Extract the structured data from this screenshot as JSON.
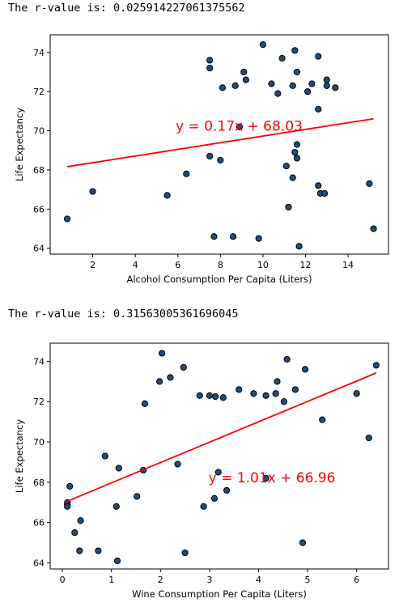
{
  "outputs": [
    {
      "rvalue_text": "The r-value is: 0.025914227061375562"
    },
    {
      "rvalue_text": "The r-value is: 0.31563005361696045"
    }
  ],
  "chart_data": [
    {
      "type": "scatter",
      "title": "",
      "xlabel": "Alcohol Consumption Per Capita (Liters)",
      "ylabel": "Life Expectancy",
      "xlim": [
        0.0,
        15.9
      ],
      "ylim": [
        63.7,
        74.9
      ],
      "xticks": [
        2,
        4,
        6,
        8,
        10,
        12,
        14
      ],
      "yticks": [
        64,
        66,
        68,
        70,
        72,
        74
      ],
      "grid": false,
      "marker_color": "#1f4e79",
      "line_color": "#ff0000",
      "regression": {
        "equation": "y = 0.17x + 68.03",
        "slope": 0.17,
        "intercept": 68.03,
        "x_range": [
          0.8,
          15.2
        ],
        "label_x": 5.9,
        "label_y": 70.0
      },
      "points": [
        [
          0.8,
          65.5
        ],
        [
          2.0,
          66.9
        ],
        [
          5.5,
          66.7
        ],
        [
          6.4,
          67.8
        ],
        [
          7.5,
          73.6
        ],
        [
          7.5,
          73.2
        ],
        [
          7.5,
          68.7
        ],
        [
          7.7,
          64.6
        ],
        [
          8.0,
          68.5
        ],
        [
          8.1,
          72.2
        ],
        [
          8.6,
          64.6
        ],
        [
          8.7,
          72.3
        ],
        [
          8.9,
          70.2
        ],
        [
          9.1,
          73.0
        ],
        [
          9.2,
          72.6
        ],
        [
          9.8,
          64.5
        ],
        [
          10.0,
          74.4
        ],
        [
          10.4,
          72.4
        ],
        [
          10.7,
          71.9
        ],
        [
          10.9,
          73.7
        ],
        [
          11.1,
          68.2
        ],
        [
          11.2,
          66.1
        ],
        [
          11.4,
          67.6
        ],
        [
          11.4,
          72.3
        ],
        [
          11.5,
          74.1
        ],
        [
          11.5,
          68.9
        ],
        [
          11.6,
          73.0
        ],
        [
          11.6,
          69.3
        ],
        [
          11.6,
          68.6
        ],
        [
          11.7,
          64.1
        ],
        [
          12.1,
          72.0
        ],
        [
          12.3,
          72.4
        ],
        [
          12.6,
          73.8
        ],
        [
          12.6,
          71.1
        ],
        [
          12.6,
          67.2
        ],
        [
          12.7,
          66.8
        ],
        [
          12.9,
          66.8
        ],
        [
          13.0,
          72.6
        ],
        [
          13.0,
          72.3
        ],
        [
          13.4,
          72.2
        ],
        [
          15.0,
          67.3
        ],
        [
          15.2,
          65.0
        ]
      ]
    },
    {
      "type": "scatter",
      "title": "",
      "xlabel": "Wine Consumption Per Capita (Liters)",
      "ylabel": "Life Expectancy",
      "xlim": [
        -0.25,
        6.65
      ],
      "ylim": [
        63.7,
        74.9
      ],
      "xticks": [
        0,
        1,
        2,
        3,
        4,
        5,
        6
      ],
      "yticks": [
        64,
        66,
        68,
        70,
        72,
        74
      ],
      "grid": false,
      "marker_color": "#1f4e79",
      "line_color": "#ff0000",
      "regression": {
        "equation": "y = 1.01x + 66.96",
        "slope": 1.01,
        "intercept": 66.96,
        "x_range": [
          0.05,
          6.4
        ],
        "label_x": 2.98,
        "label_y": 68.0
      },
      "points": [
        [
          0.1,
          67.0
        ],
        [
          0.1,
          66.9
        ],
        [
          0.1,
          66.8
        ],
        [
          0.15,
          67.8
        ],
        [
          0.25,
          65.5
        ],
        [
          0.35,
          64.6
        ],
        [
          0.37,
          66.1
        ],
        [
          0.73,
          64.6
        ],
        [
          0.87,
          69.3
        ],
        [
          1.1,
          66.8
        ],
        [
          1.12,
          64.1
        ],
        [
          1.15,
          68.7
        ],
        [
          1.52,
          67.3
        ],
        [
          1.65,
          68.6
        ],
        [
          1.68,
          71.9
        ],
        [
          1.98,
          73.0
        ],
        [
          2.03,
          74.4
        ],
        [
          2.2,
          73.2
        ],
        [
          2.35,
          68.9
        ],
        [
          2.47,
          73.7
        ],
        [
          2.5,
          64.5
        ],
        [
          2.8,
          72.3
        ],
        [
          2.88,
          66.8
        ],
        [
          3.0,
          72.3
        ],
        [
          3.1,
          67.2
        ],
        [
          3.12,
          72.25
        ],
        [
          3.18,
          68.5
        ],
        [
          3.28,
          72.2
        ],
        [
          3.35,
          67.6
        ],
        [
          3.6,
          72.6
        ],
        [
          3.9,
          72.4
        ],
        [
          4.15,
          68.2
        ],
        [
          4.15,
          72.3
        ],
        [
          4.35,
          72.4
        ],
        [
          4.38,
          73.0
        ],
        [
          4.52,
          72.0
        ],
        [
          4.58,
          74.1
        ],
        [
          4.75,
          72.6
        ],
        [
          4.9,
          65.0
        ],
        [
          4.95,
          73.6
        ],
        [
          5.3,
          71.1
        ],
        [
          6.0,
          72.4
        ],
        [
          6.25,
          70.2
        ],
        [
          6.4,
          73.8
        ]
      ]
    }
  ]
}
